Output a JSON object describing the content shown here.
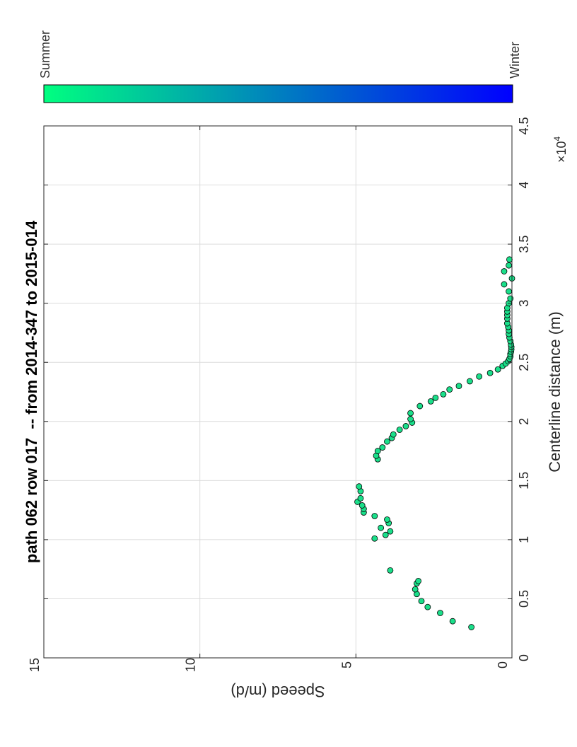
{
  "chart_data": {
    "type": "scatter",
    "orientation": "rotated-90-ccw",
    "title": "path 062 row 017  -- from 2014-347 to 2015-014",
    "xlabel": "Centerline distance (m)",
    "ylabel": "Speeed (m/d)",
    "x_exponent_label": "×10",
    "x_exponent_power": "4",
    "xlim": [
      0,
      45000
    ],
    "ylim": [
      0,
      15
    ],
    "x_ticks": [
      0,
      5000,
      10000,
      15000,
      20000,
      25000,
      30000,
      35000,
      40000,
      45000
    ],
    "x_tick_labels": [
      "0",
      "0.5",
      "1",
      "1.5",
      "2",
      "2.5",
      "3",
      "3.5",
      "4",
      "4.5"
    ],
    "y_ticks": [
      0,
      5,
      10,
      15
    ],
    "y_tick_labels": [
      "0",
      "5",
      "10",
      "15"
    ],
    "grid": true,
    "marker_color": "#1adf8a",
    "marker_edge_color": "#000000",
    "colorbar": {
      "label_start": "Summer",
      "label_end": "Winter",
      "color_start": "#00ff80",
      "color_end": "#0000ff"
    },
    "x": [
      2600,
      3100,
      3800,
      4300,
      4800,
      5400,
      5800,
      6300,
      6500,
      7400,
      10100,
      10400,
      10700,
      11000,
      11400,
      11700,
      12000,
      12300,
      12600,
      12900,
      13200,
      13500,
      14100,
      14500,
      16800,
      17100,
      17500,
      17800,
      18300,
      18600,
      18900,
      19300,
      19600,
      19900,
      20200,
      20700,
      21300,
      21700,
      22000,
      22300,
      22700,
      23000,
      23400,
      23800,
      24100,
      24400,
      24700,
      24900,
      25100,
      25300,
      25500,
      25700,
      25900,
      26100,
      26300,
      26500,
      26800,
      27100,
      27400,
      27700,
      28000,
      28300,
      28700,
      29000,
      29300,
      29600,
      30000,
      30400,
      31000,
      31600,
      32100,
      32700,
      33200,
      33700
    ],
    "y": [
      1.3,
      1.9,
      2.3,
      2.7,
      2.9,
      3.05,
      3.1,
      3.05,
      3.0,
      3.9,
      4.4,
      4.05,
      3.9,
      4.2,
      3.95,
      4.0,
      4.4,
      4.75,
      4.75,
      4.8,
      4.95,
      4.85,
      4.85,
      4.9,
      4.3,
      4.35,
      4.3,
      4.15,
      4.0,
      3.85,
      3.8,
      3.6,
      3.4,
      3.2,
      3.25,
      3.25,
      2.95,
      2.6,
      2.45,
      2.2,
      2.0,
      1.7,
      1.35,
      1.05,
      0.7,
      0.45,
      0.3,
      0.2,
      0.12,
      0.08,
      0.05,
      0.05,
      0.03,
      0.02,
      0.02,
      0.03,
      0.05,
      0.08,
      0.1,
      0.1,
      0.12,
      0.15,
      0.15,
      0.15,
      0.15,
      0.15,
      0.1,
      0.05,
      0.1,
      0.25,
      0.0,
      0.25,
      0.1,
      0.08
    ]
  }
}
